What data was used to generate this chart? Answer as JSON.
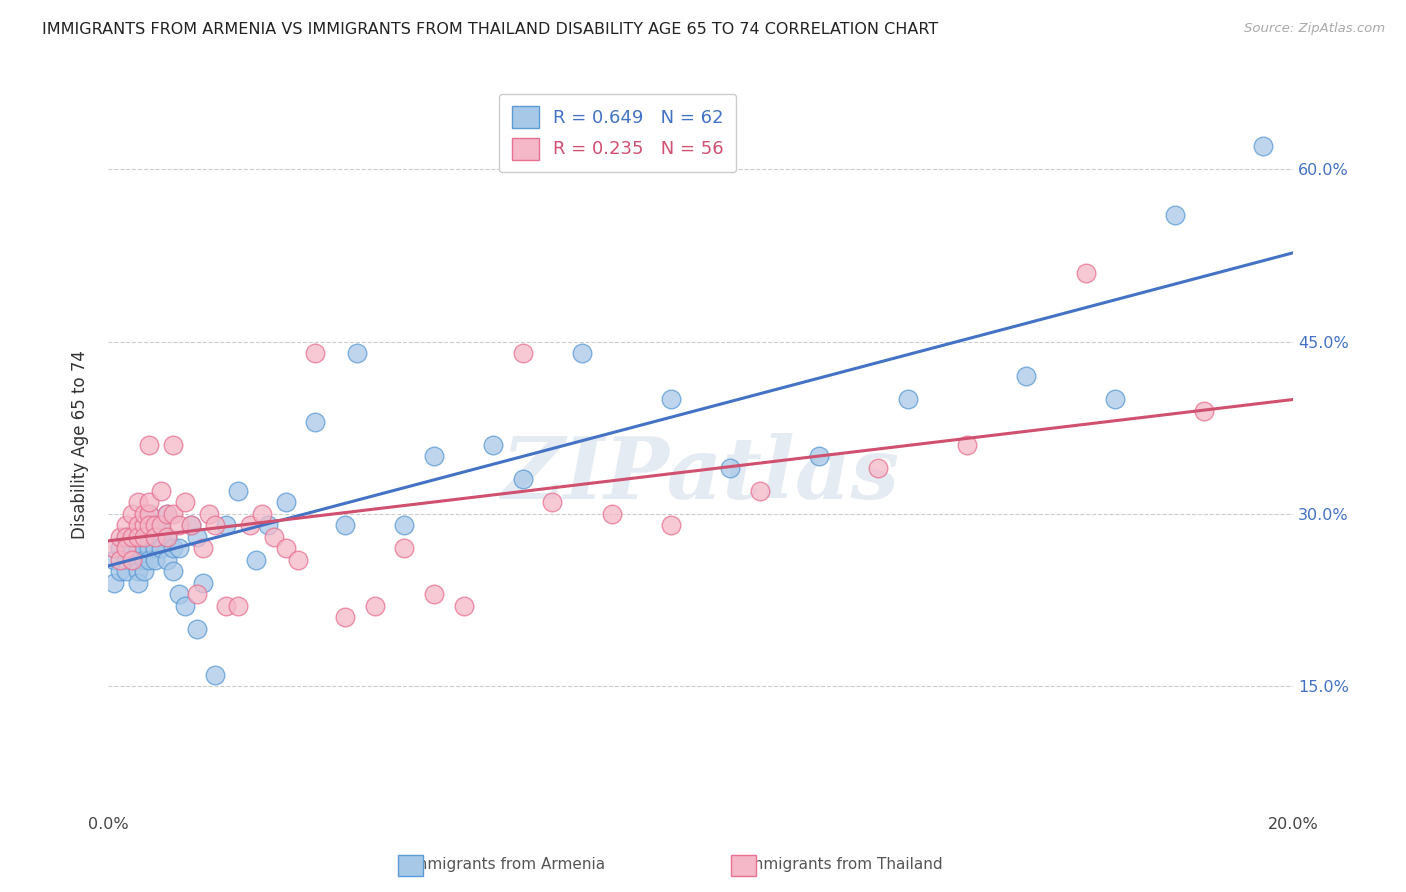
{
  "title": "IMMIGRANTS FROM ARMENIA VS IMMIGRANTS FROM THAILAND DISABILITY AGE 65 TO 74 CORRELATION CHART",
  "source": "Source: ZipAtlas.com",
  "ylabel": "Disability Age 65 to 74",
  "xlim": [
    0.0,
    0.2
  ],
  "ylim": [
    0.04,
    0.68
  ],
  "xtick_positions": [
    0.0,
    0.025,
    0.05,
    0.075,
    0.1,
    0.125,
    0.15,
    0.175,
    0.2
  ],
  "ytick_positions": [
    0.15,
    0.3,
    0.45,
    0.6
  ],
  "ytick_labels": [
    "15.0%",
    "30.0%",
    "45.0%",
    "60.0%"
  ],
  "armenia_color": "#a8c8e8",
  "armenia_edge_color": "#5b9bd5",
  "thailand_color": "#f4b8c8",
  "thailand_edge_color": "#e87090",
  "armenia_R": 0.649,
  "armenia_N": 62,
  "thailand_R": 0.235,
  "thailand_N": 56,
  "armenia_line_color": "#4472c4",
  "thailand_line_color": "#d05070",
  "label_color": "#4472c4",
  "watermark": "ZIPatlas",
  "armenia_x": [
    0.001,
    0.001,
    0.002,
    0.002,
    0.003,
    0.003,
    0.003,
    0.004,
    0.004,
    0.004,
    0.005,
    0.005,
    0.005,
    0.005,
    0.006,
    0.006,
    0.006,
    0.006,
    0.007,
    0.007,
    0.007,
    0.007,
    0.008,
    0.008,
    0.008,
    0.009,
    0.009,
    0.009,
    0.01,
    0.01,
    0.01,
    0.011,
    0.011,
    0.012,
    0.012,
    0.013,
    0.014,
    0.015,
    0.015,
    0.016,
    0.018,
    0.02,
    0.022,
    0.025,
    0.027,
    0.03,
    0.035,
    0.04,
    0.042,
    0.05,
    0.055,
    0.065,
    0.07,
    0.08,
    0.095,
    0.105,
    0.12,
    0.135,
    0.155,
    0.17,
    0.18,
    0.195
  ],
  "armenia_y": [
    0.26,
    0.24,
    0.27,
    0.25,
    0.26,
    0.28,
    0.25,
    0.27,
    0.26,
    0.28,
    0.26,
    0.25,
    0.24,
    0.27,
    0.27,
    0.26,
    0.28,
    0.25,
    0.28,
    0.3,
    0.27,
    0.26,
    0.27,
    0.29,
    0.26,
    0.29,
    0.28,
    0.27,
    0.3,
    0.28,
    0.26,
    0.27,
    0.25,
    0.27,
    0.23,
    0.22,
    0.29,
    0.28,
    0.2,
    0.24,
    0.16,
    0.29,
    0.32,
    0.26,
    0.29,
    0.31,
    0.38,
    0.29,
    0.44,
    0.29,
    0.35,
    0.36,
    0.33,
    0.44,
    0.4,
    0.34,
    0.35,
    0.4,
    0.42,
    0.4,
    0.56,
    0.62
  ],
  "thailand_x": [
    0.001,
    0.002,
    0.002,
    0.003,
    0.003,
    0.003,
    0.004,
    0.004,
    0.004,
    0.005,
    0.005,
    0.005,
    0.006,
    0.006,
    0.006,
    0.007,
    0.007,
    0.007,
    0.007,
    0.008,
    0.008,
    0.009,
    0.009,
    0.01,
    0.01,
    0.011,
    0.011,
    0.012,
    0.013,
    0.014,
    0.015,
    0.016,
    0.017,
    0.018,
    0.02,
    0.022,
    0.024,
    0.026,
    0.028,
    0.03,
    0.032,
    0.035,
    0.04,
    0.045,
    0.05,
    0.055,
    0.06,
    0.07,
    0.075,
    0.085,
    0.095,
    0.11,
    0.13,
    0.145,
    0.165,
    0.185
  ],
  "thailand_y": [
    0.27,
    0.28,
    0.26,
    0.29,
    0.28,
    0.27,
    0.3,
    0.28,
    0.26,
    0.31,
    0.29,
    0.28,
    0.29,
    0.28,
    0.3,
    0.36,
    0.3,
    0.29,
    0.31,
    0.29,
    0.28,
    0.32,
    0.29,
    0.3,
    0.28,
    0.3,
    0.36,
    0.29,
    0.31,
    0.29,
    0.23,
    0.27,
    0.3,
    0.29,
    0.22,
    0.22,
    0.29,
    0.3,
    0.28,
    0.27,
    0.26,
    0.44,
    0.21,
    0.22,
    0.27,
    0.23,
    0.22,
    0.44,
    0.31,
    0.3,
    0.29,
    0.32,
    0.34,
    0.36,
    0.51,
    0.39
  ]
}
